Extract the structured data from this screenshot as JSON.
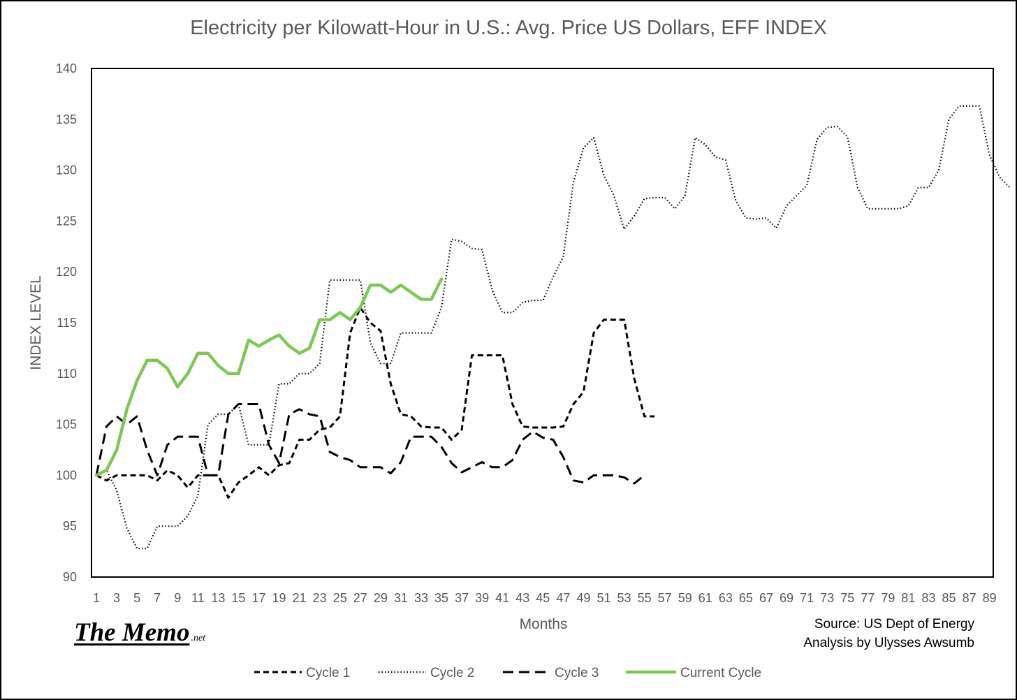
{
  "chart_data": {
    "type": "line",
    "title": "Electricity per Kilowatt-Hour in U.S.:  Avg. Price US Dollars, EFF INDEX",
    "xlabel": "Months",
    "ylabel": "INDEX LEVEL",
    "ylim": [
      90,
      140
    ],
    "y_ticks": [
      90,
      95,
      100,
      105,
      110,
      115,
      120,
      125,
      130,
      135,
      140
    ],
    "xlim": [
      1,
      90
    ],
    "x_tick_labels": [
      1,
      3,
      5,
      7,
      9,
      11,
      13,
      15,
      17,
      19,
      21,
      23,
      25,
      27,
      29,
      31,
      33,
      35,
      37,
      39,
      41,
      43,
      45,
      47,
      49,
      51,
      53,
      55,
      57,
      59,
      61,
      63,
      65,
      67,
      69,
      71,
      73,
      75,
      77,
      79,
      81,
      83,
      85,
      87,
      89
    ],
    "grid": false,
    "legend_position": "bottom",
    "series": [
      {
        "name": "Cycle 1",
        "style": "dashed",
        "color": "#000000",
        "values": [
          100,
          99.5,
          100,
          100,
          100,
          100,
          99.5,
          100.5,
          100,
          98.8,
          100,
          100,
          100,
          97.8,
          99.3,
          100,
          100.8,
          100,
          101,
          101.2,
          103.5,
          103.5,
          104.5,
          104.7,
          105.8,
          114,
          116.5,
          115,
          114.2,
          109,
          106,
          105.8,
          104.8,
          104.7,
          104.7,
          103.5,
          104.5,
          111.8,
          111.8,
          111.8,
          111.8,
          107,
          104.8,
          104.7,
          104.7,
          104.7,
          104.8,
          107,
          108.2,
          114,
          115.3,
          115.3,
          115.3,
          109.5,
          105.8,
          105.8
        ]
      },
      {
        "name": "Cycle 2",
        "style": "dotted",
        "color": "#000000",
        "values": [
          100,
          100.5,
          98.5,
          94.8,
          92.8,
          92.8,
          95,
          95,
          95,
          96,
          98,
          105,
          106,
          106,
          107,
          103,
          103,
          103,
          109,
          109,
          110,
          110,
          111,
          119.2,
          119.2,
          119.2,
          119.2,
          113,
          111,
          111,
          114,
          114,
          114,
          114,
          116.5,
          123.2,
          123,
          122.3,
          122.2,
          118.2,
          116,
          116,
          117,
          117.2,
          117.2,
          119.5,
          121.5,
          128.8,
          132.2,
          133.2,
          129.5,
          127.5,
          124.2,
          125.5,
          127.2,
          127.3,
          127.3,
          126.2,
          127.5,
          133.2,
          132.5,
          131.3,
          131,
          127,
          125.3,
          125.2,
          125.3,
          124.3,
          126.5,
          127.5,
          128.5,
          133,
          134.2,
          134.3,
          133.3,
          128.3,
          126.2,
          126.2,
          126.2,
          126.2,
          126.5,
          128.3,
          128.3,
          130,
          135,
          136.3,
          136.3,
          136.3,
          131.5,
          129.3,
          128.3
        ]
      },
      {
        "name": "Cycle 3",
        "style": "long-dashed",
        "color": "#000000",
        "values": [
          100,
          104.8,
          105.8,
          105,
          105.8,
          102.5,
          100,
          103,
          103.8,
          103.8,
          103.8,
          100,
          100,
          106,
          107,
          107,
          107,
          103,
          101.2,
          106,
          106.5,
          106,
          105.8,
          102.3,
          101.8,
          101.5,
          100.8,
          100.8,
          100.8,
          100.2,
          101.3,
          103.8,
          103.8,
          103.8,
          102.8,
          101.2,
          100.3,
          100.8,
          101.3,
          100.8,
          100.8,
          101.5,
          103.5,
          104.3,
          103.7,
          103.5,
          101.8,
          99.5,
          99.3,
          100,
          100,
          100,
          99.8,
          99.2,
          100
        ]
      },
      {
        "name": "Current Cycle",
        "style": "solid",
        "color": "#7dc855",
        "values": [
          100,
          100.5,
          102.5,
          106.5,
          109.3,
          111.3,
          111.3,
          110.5,
          108.7,
          110,
          112,
          112,
          110.8,
          110,
          110,
          113.3,
          112.7,
          113.3,
          113.8,
          112.7,
          112,
          112.5,
          115.3,
          115.3,
          116,
          115.3,
          116.5,
          118.7,
          118.7,
          118,
          118.7,
          118,
          117.3,
          117.3,
          119.3
        ]
      }
    ]
  },
  "branding": {
    "logo_text": "The Memo",
    "logo_suffix": ".net"
  },
  "source": {
    "line1": "Source: US Dept of Energy",
    "line2": "Analysis by Ulysses Awsumb"
  }
}
